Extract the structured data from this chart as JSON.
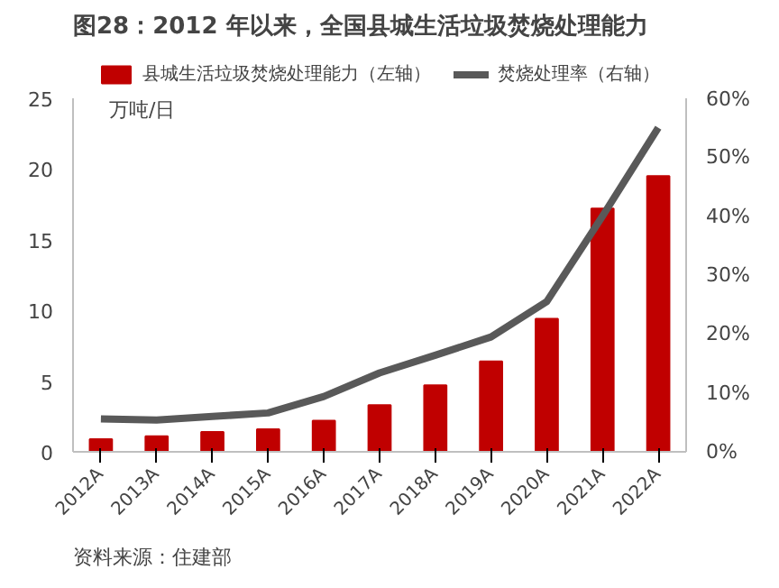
{
  "chart_data": {
    "type": "bar",
    "title": "图28：2012 年以来，全国县城生活垃圾焚烧处理能力",
    "ylabel": "万吨/日",
    "categories": [
      "2012A",
      "2013A",
      "2014A",
      "2015A",
      "2016A",
      "2017A",
      "2018A",
      "2019A",
      "2020A",
      "2021A",
      "2022A"
    ],
    "series": [
      {
        "name": "县城生活垃圾焚烧处理能力（左轴）",
        "color": "#c00000",
        "values": [
          0.9,
          1.1,
          1.4,
          1.6,
          2.2,
          3.3,
          4.7,
          6.4,
          9.4,
          17.2,
          19.5
        ]
      },
      {
        "name": "焚烧处理率（右轴）",
        "type": "line",
        "axis": "y2",
        "color": "#595959",
        "values": [
          5.6,
          5.4,
          6.0,
          6.6,
          9.4,
          13.4,
          16.4,
          19.5,
          25.5,
          40,
          55
        ]
      }
    ],
    "ylim": [
      0,
      25
    ],
    "yticks": [
      0,
      5,
      10,
      15,
      20,
      25
    ],
    "y2lim": [
      0,
      60
    ],
    "y2ticks": [
      {
        "value": 0,
        "label": "0%"
      },
      {
        "value": 10,
        "label": "10%"
      },
      {
        "value": 20,
        "label": "20%"
      },
      {
        "value": 30,
        "label": "30%"
      },
      {
        "value": 40,
        "label": "40%"
      },
      {
        "value": 50,
        "label": "50%"
      },
      {
        "value": 60,
        "label": "60%"
      }
    ],
    "grid": false,
    "legend": "top",
    "annotations": [
      "资料来源：住建部"
    ]
  }
}
